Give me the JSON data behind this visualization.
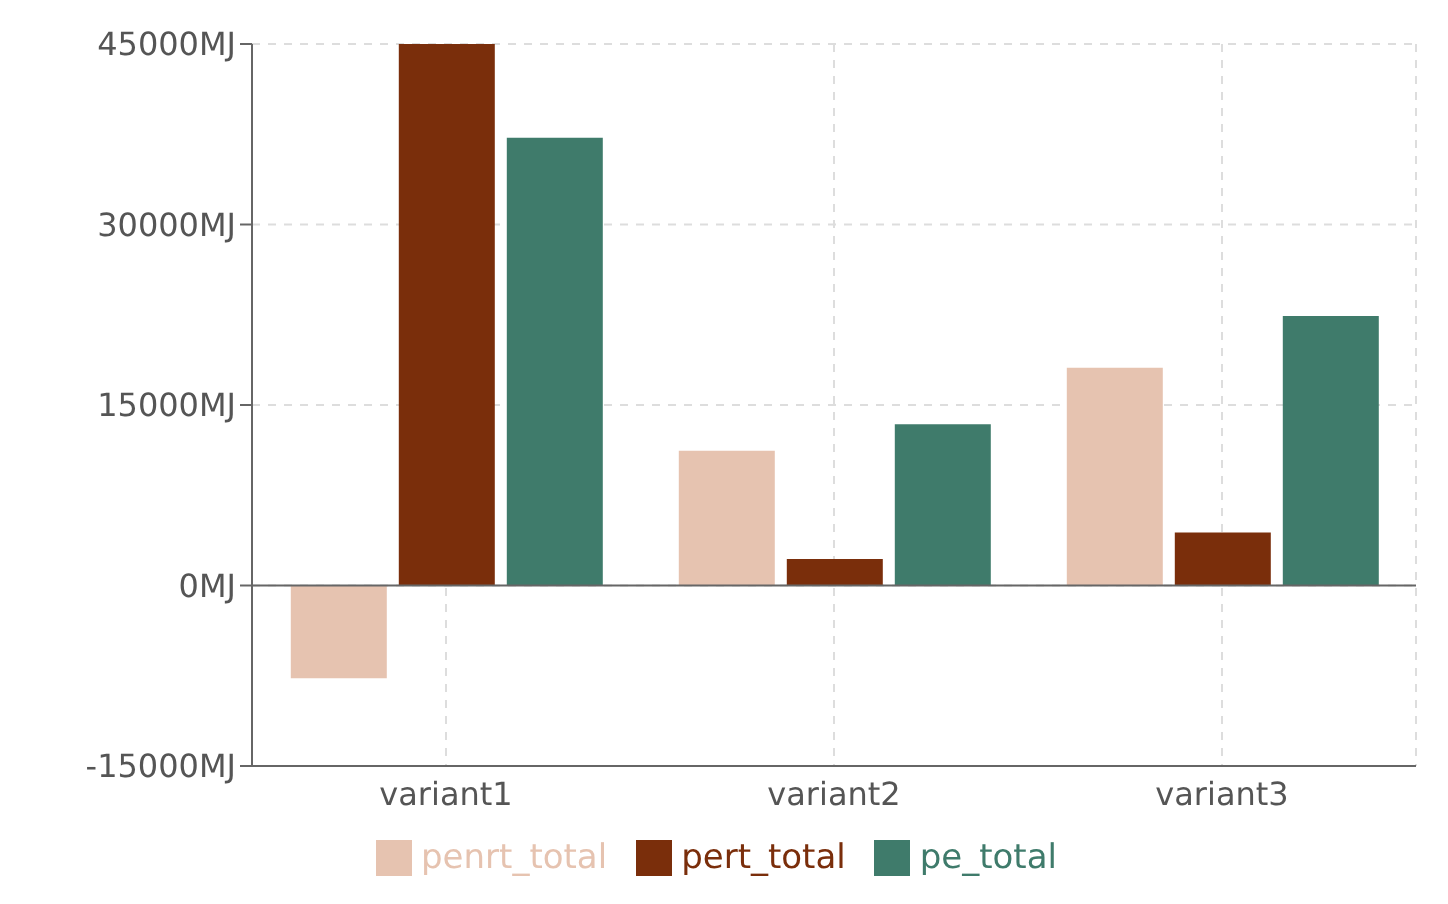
{
  "chart_data": {
    "type": "bar",
    "categories": [
      "variant1",
      "variant2",
      "variant3"
    ],
    "series": [
      {
        "name": "penrt_total",
        "color": "#e6c3b0",
        "values": [
          -7700,
          11200,
          18100
        ]
      },
      {
        "name": "pert_total",
        "color": "#7a2e0b",
        "values": [
          45000,
          2200,
          4400
        ]
      },
      {
        "name": "pe_total",
        "color": "#3f7b6b",
        "values": [
          37200,
          13400,
          22400
        ]
      }
    ],
    "ylim": [
      -15000,
      45000
    ],
    "yticks": [
      {
        "value": -15000,
        "label": "-15000MJ"
      },
      {
        "value": 0,
        "label": "0MJ"
      },
      {
        "value": 15000,
        "label": "15000MJ"
      },
      {
        "value": 30000,
        "label": "30000MJ"
      },
      {
        "value": 45000,
        "label": "45000MJ"
      }
    ],
    "grid": true,
    "legend": "bottom"
  }
}
